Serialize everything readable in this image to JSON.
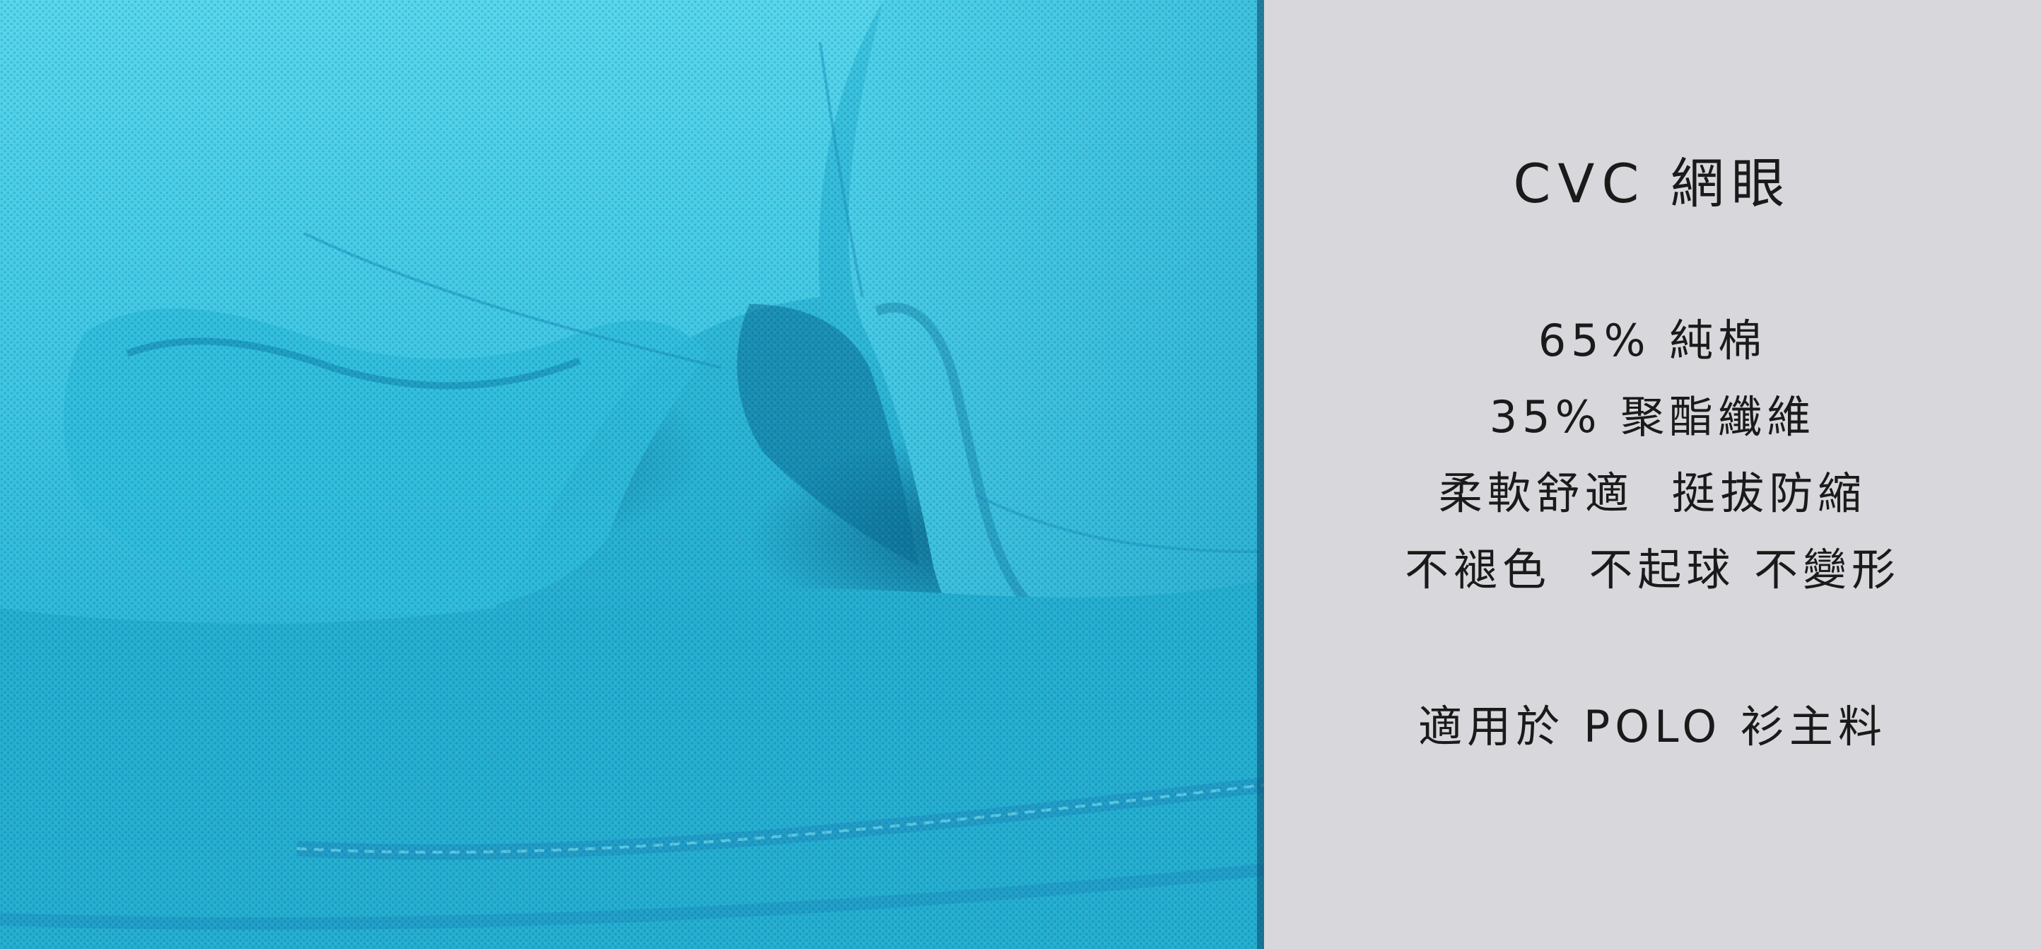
{
  "image": {
    "description_colors": {
      "fabric_primary": "#23aecf",
      "fabric_highlight": "#4fd3ea",
      "fabric_shadow": "#0b6f97",
      "panel_background": "#d8d7db",
      "text_color": "#1a1a1a"
    }
  },
  "product": {
    "title": "CVC 網眼",
    "features": [
      "65% 純棉",
      "35% 聚酯纖維",
      "柔軟舒適  挺拔防縮",
      "不褪色  不起球 不變形"
    ],
    "usage": "適用於 POLO 衫主料"
  }
}
